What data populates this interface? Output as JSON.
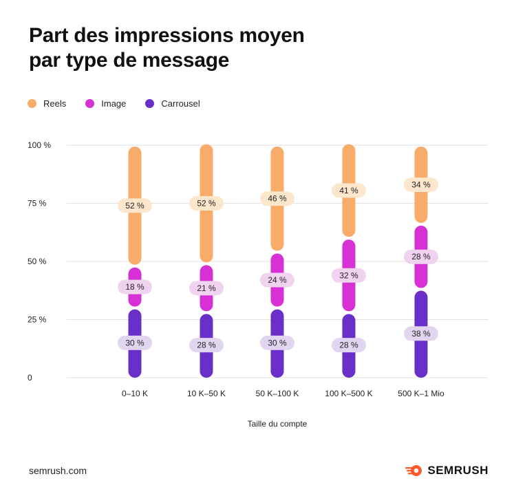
{
  "title_lines": [
    "Part des impressions moyen",
    "par type de message"
  ],
  "source": "semrush.com",
  "brand": "SEMRUSH",
  "colors": {
    "reels": "#F9AC6A",
    "image": "#D730D5",
    "carrousel": "#6B2FC9",
    "reels_label_bg": "#FCE6CC",
    "image_label_bg": "#F0D3EE",
    "carrousel_label_bg": "#E2D5EF",
    "grid": "#E2E2E2",
    "brand_icon": "#FF5B2E"
  },
  "chart_data": {
    "type": "bar",
    "stacked": true,
    "title": "Part des impressions moyen par type de message",
    "xlabel": "Taille du compte",
    "ylabel": "",
    "ylim": [
      0,
      100
    ],
    "yticks": [
      0,
      25,
      50,
      75,
      100
    ],
    "ytick_labels": [
      "0",
      "25 %",
      "50 %",
      "75 %",
      "100 %"
    ],
    "grid": true,
    "legend_position": "top-left",
    "categories": [
      "0–10 K",
      "10 K–50 K",
      "50 K–100 K",
      "100 K–500 K",
      "500 K–1 Mio"
    ],
    "series": [
      {
        "name": "Carrousel",
        "key": "carrousel",
        "values": [
          30,
          28,
          30,
          28,
          38
        ],
        "labels": [
          "30 %",
          "28 %",
          "30 %",
          "28 %",
          "38 %"
        ]
      },
      {
        "name": "Image",
        "key": "image",
        "values": [
          18,
          21,
          24,
          32,
          28
        ],
        "labels": [
          "18 %",
          "21 %",
          "24 %",
          "32 %",
          "28 %"
        ]
      },
      {
        "name": "Reels",
        "key": "reels",
        "values": [
          52,
          52,
          46,
          41,
          34
        ],
        "labels": [
          "52 %",
          "52 %",
          "46 %",
          "41 %",
          "34 %"
        ]
      }
    ],
    "legend_order": [
      "Reels",
      "Image",
      "Carrousel"
    ]
  }
}
